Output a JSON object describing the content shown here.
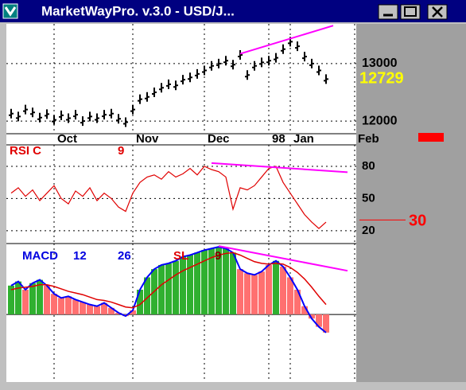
{
  "window": {
    "title": "MarketWayPro. v.3.0 - USD/J..."
  },
  "chart_data": [
    {
      "type": "stock",
      "categories": [
        null,
        null,
        null,
        null,
        null,
        null,
        "Oct",
        null,
        null,
        null,
        null,
        null,
        null,
        null,
        null,
        null,
        null,
        "Nov",
        null,
        null,
        null,
        null,
        null,
        null,
        null,
        null,
        null,
        "Dec",
        null,
        null,
        null,
        null,
        null,
        null,
        null,
        null,
        "98",
        null,
        null,
        "Jan",
        null,
        null,
        null,
        null,
        null,
        null,
        null,
        null,
        "Feb"
      ],
      "values": [
        12130,
        12080,
        12200,
        12150,
        12060,
        12120,
        12020,
        12100,
        12050,
        12110,
        12000,
        12080,
        12050,
        12110,
        12130,
        12040,
        11980,
        12200,
        12380,
        12420,
        12500,
        12580,
        12640,
        12620,
        12720,
        12760,
        12820,
        12880,
        12960,
        13000,
        13050,
        12980,
        13150,
        12800,
        12960,
        13020,
        13050,
        13100,
        13250,
        13380,
        13300,
        13120,
        13000,
        12880,
        12729,
        null,
        null,
        null,
        null
      ],
      "color": "#000000",
      "last_color": "#ffff00",
      "ylim": [
        11780,
        13690
      ],
      "yticks": [
        12000,
        13000
      ],
      "grid": true,
      "trendline": {
        "color": "#ff00ff",
        "from": [
          32,
          13170
        ],
        "to": [
          45,
          13660
        ]
      }
    },
    {
      "type": "line",
      "title_parts": [
        {
          "text": "RSI C",
          "color": "#e00000"
        },
        {
          "text": "9",
          "color": "#e00000"
        }
      ],
      "values": [
        55,
        60,
        52,
        58,
        48,
        55,
        62,
        50,
        45,
        57,
        52,
        60,
        48,
        55,
        50,
        42,
        38,
        55,
        65,
        70,
        72,
        68,
        75,
        70,
        73,
        78,
        72,
        80,
        77,
        75,
        70,
        40,
        60,
        58,
        62,
        70,
        78,
        80,
        65,
        55,
        45,
        35,
        28,
        22,
        28,
        null,
        null,
        null,
        null
      ],
      "color": "#e00000",
      "ylim": [
        8,
        100
      ],
      "yticks": [
        20,
        50,
        80
      ],
      "grid": true,
      "marker": {
        "value": 30,
        "color": "#ff0000"
      },
      "trendline": {
        "color": "#ff00ff",
        "from": [
          28,
          83
        ],
        "to": [
          47,
          74.5
        ]
      }
    },
    {
      "type": "macd",
      "title_parts": [
        {
          "text": "MACD",
          "color": "#0000e0"
        },
        {
          "text": "12",
          "color": "#0000e0"
        },
        {
          "text": "26",
          "color": "#0000e0"
        },
        {
          "text": "SL",
          "color": "#e00000"
        },
        {
          "text": "9",
          "color": "#800000"
        }
      ],
      "values": [
        35,
        40,
        30,
        38,
        42,
        35,
        25,
        20,
        22,
        18,
        15,
        12,
        10,
        14,
        8,
        2,
        -2,
        5,
        30,
        45,
        55,
        60,
        62,
        65,
        70,
        72,
        75,
        78,
        80,
        82,
        80,
        75,
        55,
        50,
        48,
        52,
        60,
        65,
        58,
        45,
        30,
        10,
        -5,
        -15,
        -22,
        null,
        null,
        null,
        null
      ],
      "signal": [
        30,
        32,
        33,
        34,
        36,
        36,
        34,
        31,
        28,
        26,
        24,
        21,
        18,
        17,
        15,
        12,
        9,
        8,
        12,
        20,
        28,
        36,
        42,
        48,
        53,
        57,
        61,
        65,
        69,
        72,
        74,
        75,
        72,
        68,
        64,
        62,
        61,
        62,
        61,
        57,
        51,
        43,
        33,
        22,
        12,
        null,
        null,
        null,
        null
      ],
      "up_color": "#30b030",
      "down_color": "#ff7070",
      "line_color": "#0000ff",
      "signal_color": "#e00000",
      "ylim": [
        -82,
        86
      ],
      "trendline": {
        "color": "#ff00ff",
        "from": [
          29,
          83
        ],
        "to": [
          47,
          53
        ]
      }
    }
  ]
}
